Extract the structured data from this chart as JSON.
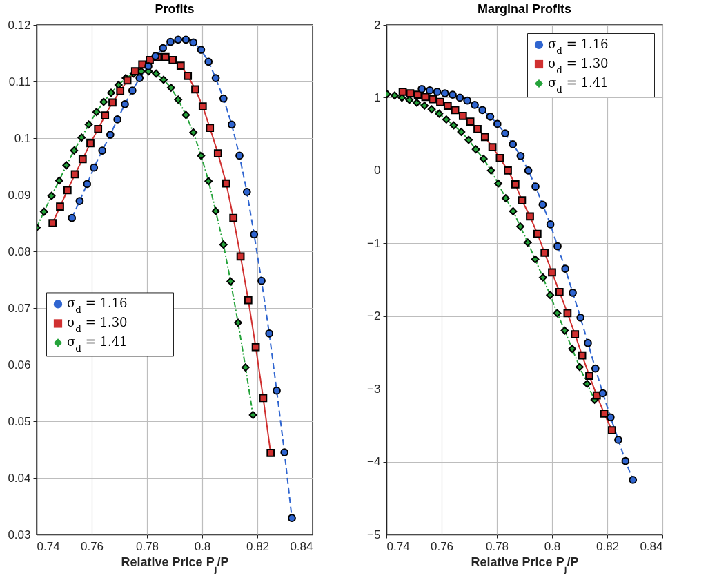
{
  "chart_data": [
    {
      "type": "line",
      "title": "Profits",
      "xlabel": "Relative Price P$_{j}$/P",
      "xlim": [
        0.74,
        0.84
      ],
      "xticks": [
        0.74,
        0.76,
        0.78,
        0.8,
        0.82,
        0.84
      ],
      "ylim": [
        0.03,
        0.12
      ],
      "yticks": [
        0.03,
        0.04,
        0.05,
        0.06,
        0.07,
        0.08,
        0.09,
        0.1,
        0.11,
        0.12
      ],
      "grid": true,
      "legend": "left",
      "series": [
        {
          "name": "σ$_{d}$ = 1.16",
          "color": "#2f65d0",
          "marker": "circle",
          "line_style": "dashed",
          "x": [
            0.7528,
            0.7556,
            0.7583,
            0.7608,
            0.7638,
            0.7667,
            0.7693,
            0.772,
            0.7747,
            0.7773,
            0.7805,
            0.7831,
            0.7858,
            0.7885,
            0.7913,
            0.7941,
            0.7968,
            0.7996,
            0.8023,
            0.8049,
            0.8077,
            0.8107,
            0.8135,
            0.8162,
            0.8188,
            0.8215,
            0.8243,
            0.827,
            0.8298,
            0.8325
          ],
          "values": [
            0.0859,
            0.0889,
            0.0919,
            0.0948,
            0.0978,
            0.1006,
            0.1033,
            0.106,
            0.1084,
            0.1106,
            0.1127,
            0.1145,
            0.1159,
            0.117,
            0.1174,
            0.1174,
            0.1169,
            0.1156,
            0.1135,
            0.1106,
            0.107,
            0.1024,
            0.0969,
            0.0905,
            0.083,
            0.0748,
            0.0655,
            0.0554,
            0.0445,
            0.0329
          ]
        },
        {
          "name": "σ$_{d}$ = 1.30",
          "color": "#d03030",
          "marker": "square",
          "line_style": "solid",
          "x": [
            0.7458,
            0.7485,
            0.7512,
            0.7539,
            0.7567,
            0.7595,
            0.7623,
            0.7648,
            0.7675,
            0.7703,
            0.7729,
            0.7757,
            0.7783,
            0.781,
            0.7839,
            0.7867,
            0.7893,
            0.7922,
            0.7948,
            0.7975,
            0.8002,
            0.8028,
            0.8057,
            0.8087,
            0.8113,
            0.8139,
            0.8167,
            0.8194,
            0.8221,
            0.8248
          ],
          "values": [
            0.085,
            0.0879,
            0.0908,
            0.0936,
            0.0963,
            0.0991,
            0.1016,
            0.104,
            0.1063,
            0.1083,
            0.1102,
            0.1118,
            0.113,
            0.1138,
            0.1143,
            0.1143,
            0.1138,
            0.1128,
            0.111,
            0.1086,
            0.1056,
            0.1018,
            0.0973,
            0.092,
            0.0859,
            0.0791,
            0.0714,
            0.0631,
            0.0541,
            0.0444
          ]
        },
        {
          "name": "σ$_{d}$ = 1.41",
          "color": "#25a33a",
          "marker": "diamond",
          "line_style": "dotted",
          "x": [
            0.74,
            0.7427,
            0.7454,
            0.7482,
            0.7508,
            0.7536,
            0.7563,
            0.7589,
            0.7617,
            0.7643,
            0.767,
            0.7697,
            0.7723,
            0.7752,
            0.7779,
            0.7806,
            0.7833,
            0.786,
            0.7887,
            0.7913,
            0.7941,
            0.7968,
            0.7996,
            0.8023,
            0.8049,
            0.8077,
            0.8103,
            0.813,
            0.8157,
            0.8184
          ],
          "values": [
            0.0842,
            0.087,
            0.0898,
            0.0925,
            0.0952,
            0.0978,
            0.1001,
            0.1024,
            0.1046,
            0.1064,
            0.108,
            0.1094,
            0.1106,
            0.1114,
            0.1118,
            0.1118,
            0.1114,
            0.1103,
            0.1089,
            0.1068,
            0.1041,
            0.101,
            0.0969,
            0.0924,
            0.0871,
            0.0812,
            0.0747,
            0.0674,
            0.0595,
            0.0511
          ]
        }
      ]
    },
    {
      "type": "line",
      "title": "Marginal Profits",
      "xlabel": "Relative Price P$_{j}$/P",
      "xlim": [
        0.74,
        0.84
      ],
      "xticks": [
        0.74,
        0.76,
        0.78,
        0.8,
        0.82,
        0.84
      ],
      "ylim": [
        -5,
        2
      ],
      "yticks": [
        -5,
        -4,
        -3,
        -2,
        -1,
        0,
        1,
        2
      ],
      "grid": true,
      "legend": "top right",
      "series": [
        {
          "name": "σ$_{d}$ = 1.16",
          "color": "#2f65d0",
          "marker": "circle",
          "line_style": "dashed",
          "x": [
            0.7528,
            0.7557,
            0.7584,
            0.7612,
            0.764,
            0.7666,
            0.7693,
            0.772,
            0.7748,
            0.7776,
            0.7802,
            0.783,
            0.7858,
            0.7886,
            0.7914,
            0.794,
            0.7966,
            0.7994,
            0.802,
            0.8048,
            0.8075,
            0.8103,
            0.813,
            0.8157,
            0.8184,
            0.8212,
            0.824,
            0.8266,
            0.8293
          ],
          "values": [
            1.12,
            1.1,
            1.08,
            1.06,
            1.04,
            1.0,
            0.96,
            0.9,
            0.83,
            0.74,
            0.64,
            0.51,
            0.36,
            0.2,
            0.0,
            -0.22,
            -0.47,
            -0.74,
            -1.04,
            -1.35,
            -1.68,
            -2.02,
            -2.37,
            -2.72,
            -3.06,
            -3.39,
            -3.7,
            -3.99,
            -4.25
          ]
        },
        {
          "name": "σ$_{d}$ = 1.30",
          "color": "#d03030",
          "marker": "square",
          "line_style": "solid",
          "x": [
            0.7459,
            0.7486,
            0.7514,
            0.7541,
            0.7568,
            0.7595,
            0.7622,
            0.7649,
            0.7677,
            0.7704,
            0.773,
            0.7757,
            0.7784,
            0.7811,
            0.784,
            0.7867,
            0.7891,
            0.792,
            0.7947,
            0.7973,
            0.8,
            0.8027,
            0.8056,
            0.8083,
            0.8109,
            0.8135,
            0.8162,
            0.8189,
            0.8217
          ],
          "values": [
            1.08,
            1.06,
            1.04,
            1.01,
            0.98,
            0.94,
            0.89,
            0.83,
            0.75,
            0.67,
            0.57,
            0.46,
            0.32,
            0.17,
            0.0,
            -0.19,
            -0.41,
            -0.63,
            -0.87,
            -1.13,
            -1.4,
            -1.67,
            -1.96,
            -2.25,
            -2.54,
            -2.82,
            -3.09,
            -3.34,
            -3.57
          ]
        },
        {
          "name": "σ$_{d}$ = 1.41",
          "color": "#25a33a",
          "marker": "diamond",
          "line_style": "dotted",
          "x": [
            0.7402,
            0.743,
            0.7456,
            0.7483,
            0.751,
            0.7538,
            0.7564,
            0.7591,
            0.7617,
            0.7644,
            0.7671,
            0.7698,
            0.7724,
            0.7752,
            0.7779,
            0.7805,
            0.7832,
            0.7859,
            0.7885,
            0.7912,
            0.7939,
            0.7967,
            0.7993,
            0.8019,
            0.8046,
            0.8073,
            0.81,
            0.8127,
            0.8154
          ],
          "values": [
            1.05,
            1.03,
            1.0,
            0.97,
            0.93,
            0.89,
            0.84,
            0.78,
            0.7,
            0.62,
            0.53,
            0.42,
            0.29,
            0.16,
            0.0,
            -0.18,
            -0.38,
            -0.56,
            -0.77,
            -0.99,
            -1.22,
            -1.47,
            -1.71,
            -1.96,
            -2.2,
            -2.45,
            -2.7,
            -2.93,
            -3.15
          ]
        }
      ]
    }
  ]
}
